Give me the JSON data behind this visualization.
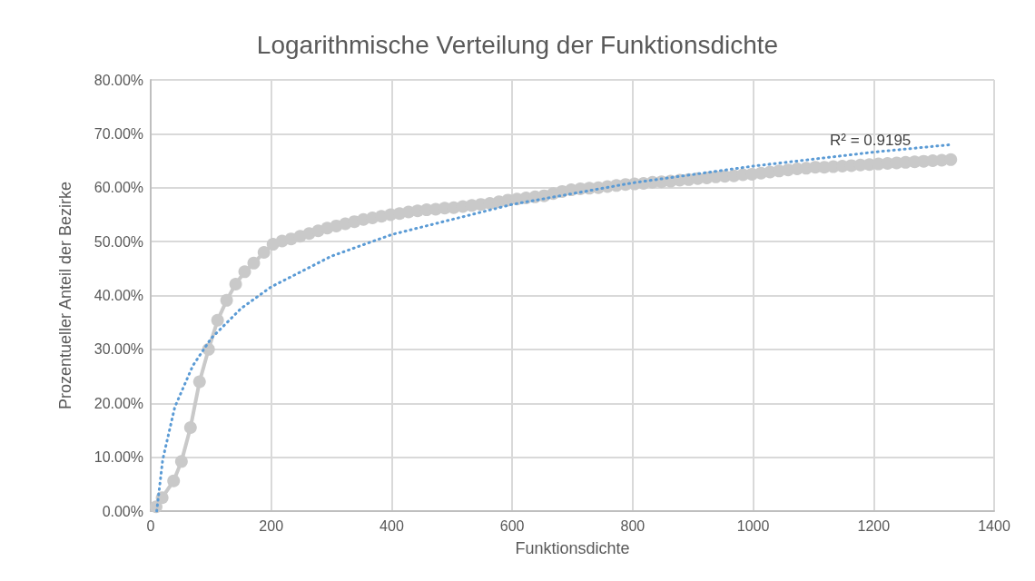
{
  "chart_data": {
    "type": "line",
    "title": "Logarithmische Verteilung der Funktionsdichte",
    "xlabel": "Funktionsdichte",
    "ylabel": "Prozentueller Anteil der Bezirke",
    "xlim": [
      0,
      1400
    ],
    "xticks": [
      0,
      200,
      400,
      600,
      800,
      1000,
      1200,
      1400
    ],
    "ylim": [
      0,
      80
    ],
    "yticks": [
      {
        "value": 0,
        "label": "0.00%"
      },
      {
        "value": 10,
        "label": "10.00%"
      },
      {
        "value": 20,
        "label": "20.00%"
      },
      {
        "value": 30,
        "label": "30.00%"
      },
      {
        "value": 40,
        "label": "40.00%"
      },
      {
        "value": 50,
        "label": "50.00%"
      },
      {
        "value": 60,
        "label": "60.00%"
      },
      {
        "value": 70,
        "label": "70.00%"
      },
      {
        "value": 80,
        "label": "80.00%"
      }
    ],
    "grid": true,
    "annotations": [
      "R² = 0.9195"
    ],
    "series": [
      {
        "color": "#c9c9c9",
        "marker": "circle",
        "line_style": "solid",
        "x": [
          9,
          19,
          38,
          51,
          66,
          81,
          96,
          111,
          126,
          141,
          156,
          171,
          188,
          203,
          218,
          233,
          248,
          263,
          278,
          293,
          308,
          323,
          338,
          353,
          368,
          383,
          398,
          413,
          428,
          443,
          458,
          473,
          488,
          503,
          518,
          533,
          548,
          563,
          578,
          593,
          608,
          623,
          638,
          653,
          668,
          683,
          698,
          713,
          728,
          743,
          758,
          773,
          788,
          803,
          818,
          833,
          848,
          863,
          878,
          893,
          908,
          923,
          938,
          953,
          968,
          983,
          998,
          1013,
          1028,
          1043,
          1058,
          1073,
          1088,
          1103,
          1118,
          1133,
          1148,
          1163,
          1178,
          1193,
          1208,
          1223,
          1238,
          1253,
          1268,
          1283,
          1298,
          1313,
          1328
        ],
        "values": [
          0.8,
          2.5,
          5.6,
          9.2,
          15.5,
          24,
          30,
          35.4,
          39.1,
          42.1,
          44.4,
          46,
          48,
          49.5,
          50.1,
          50.5,
          51.0,
          51.5,
          52.0,
          52.5,
          52.9,
          53.3,
          53.7,
          54.1,
          54.4,
          54.7,
          55.0,
          55.2,
          55.5,
          55.7,
          55.9,
          56.0,
          56.2,
          56.3,
          56.5,
          56.7,
          56.9,
          57.1,
          57.4,
          57.7,
          57.9,
          58.1,
          58.3,
          58.5,
          58.9,
          59.3,
          59.6,
          59.8,
          59.9,
          60.0,
          60.2,
          60.4,
          60.6,
          60.7,
          60.8,
          61.0,
          61.1,
          61.2,
          61.4,
          61.5,
          61.7,
          61.8,
          62.0,
          62.1,
          62.2,
          62.4,
          62.5,
          62.7,
          62.9,
          63.1,
          63.3,
          63.5,
          63.6,
          63.8,
          63.8,
          63.9,
          64.0,
          64.1,
          64.2,
          64.3,
          64.4,
          64.5,
          64.6,
          64.7,
          64.8,
          64.9,
          65.0,
          65.1,
          65.2
        ]
      },
      {
        "color": "#5b9bd5",
        "marker": "none",
        "line_style": "dotted",
        "x": [
          10,
          20,
          40,
          70,
          100,
          150,
          200,
          300,
          400,
          600,
          800,
          1000,
          1200,
          1330
        ],
        "values": [
          0.0,
          9.6,
          19.3,
          27.0,
          32.0,
          37.6,
          41.6,
          47.3,
          51.3,
          56.9,
          60.9,
          64.0,
          66.6,
          68.0
        ]
      }
    ]
  }
}
